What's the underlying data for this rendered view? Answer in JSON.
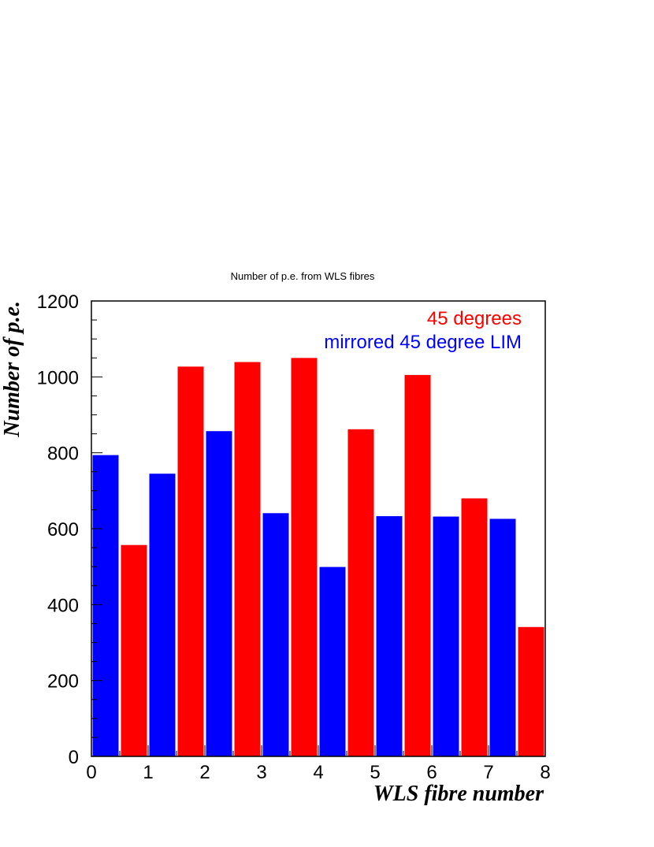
{
  "chart_data": {
    "type": "bar",
    "title": "Number of p.e. from WLS fibres",
    "xlabel": "WLS fibre number",
    "ylabel": "Number of p.e.",
    "xlim": [
      0,
      8
    ],
    "ylim": [
      0,
      1200
    ],
    "x_ticks": [
      "0",
      "1",
      "2",
      "3",
      "4",
      "5",
      "6",
      "7",
      "8"
    ],
    "y_ticks": [
      "0",
      "200",
      "400",
      "600",
      "800",
      "1000",
      "1200"
    ],
    "bin_width": 0.5,
    "series": [
      {
        "name": "45 degrees",
        "color": "#ff0000",
        "x": [
          1,
          2,
          3,
          4,
          5,
          6,
          7,
          8
        ],
        "values": [
          557,
          1027,
          1039,
          1050,
          862,
          1005,
          680,
          341
        ]
      },
      {
        "name": "mirrored 45 degree LIM",
        "color": "#0000ff",
        "x": [
          0.5,
          1.5,
          2.5,
          3.5,
          4.5,
          5.5,
          6.5,
          7.5
        ],
        "values": [
          794,
          745,
          857,
          641,
          499,
          633,
          632,
          626
        ]
      }
    ],
    "legend_position": "top-right",
    "grid": false
  }
}
